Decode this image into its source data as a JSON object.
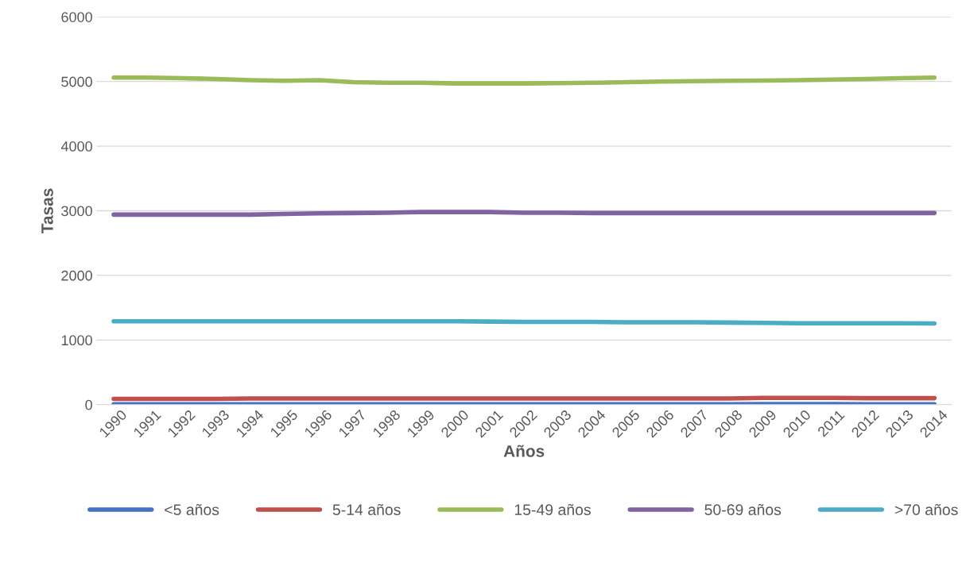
{
  "chart_data": {
    "type": "line",
    "xlabel": "Años",
    "ylabel": "Tasas",
    "categories": [
      "1990",
      "1991",
      "1992",
      "1993",
      "1994",
      "1995",
      "1996",
      "1997",
      "1998",
      "1999",
      "2000",
      "2001",
      "2002",
      "2003",
      "2004",
      "2005",
      "2006",
      "2007",
      "2008",
      "2009",
      "2010",
      "2011",
      "2012",
      "2013",
      "2014"
    ],
    "ylim": [
      0,
      6000
    ],
    "yticks": [
      0,
      1000,
      2000,
      3000,
      4000,
      5000,
      6000
    ],
    "grid": "y",
    "legend": "bottom",
    "marker": "none",
    "line_style": "solid",
    "series": [
      {
        "name": "<5 años",
        "color": "#4472c4",
        "values": [
          5,
          5,
          5,
          5,
          5,
          5,
          5,
          5,
          5,
          5,
          5,
          5,
          5,
          5,
          5,
          5,
          5,
          5,
          5,
          10,
          10,
          10,
          5,
          5,
          5
        ]
      },
      {
        "name": "5-14 años",
        "color": "#c0504d",
        "values": [
          90,
          90,
          90,
          90,
          95,
          95,
          95,
          95,
          95,
          95,
          95,
          95,
          95,
          95,
          95,
          95,
          95,
          95,
          95,
          105,
          105,
          105,
          100,
          100,
          100
        ]
      },
      {
        "name": "15-49 años",
        "color": "#9bbb59",
        "values": [
          5060,
          5060,
          5050,
          5040,
          5020,
          5010,
          5020,
          4990,
          4980,
          4980,
          4970,
          4970,
          4970,
          4975,
          4980,
          4990,
          5000,
          5005,
          5010,
          5015,
          5020,
          5030,
          5040,
          5050,
          5060
        ]
      },
      {
        "name": "50-69 años",
        "color": "#8064a2",
        "values": [
          2940,
          2940,
          2940,
          2940,
          2940,
          2950,
          2960,
          2965,
          2970,
          2980,
          2980,
          2980,
          2970,
          2970,
          2965,
          2965,
          2965,
          2965,
          2965,
          2965,
          2965,
          2965,
          2965,
          2965,
          2965
        ]
      },
      {
        "name": ">70 años",
        "color": "#4bacc6",
        "values": [
          1290,
          1290,
          1290,
          1290,
          1290,
          1290,
          1290,
          1290,
          1290,
          1290,
          1290,
          1285,
          1280,
          1280,
          1280,
          1275,
          1275,
          1275,
          1270,
          1265,
          1260,
          1260,
          1260,
          1260,
          1255
        ]
      }
    ]
  }
}
